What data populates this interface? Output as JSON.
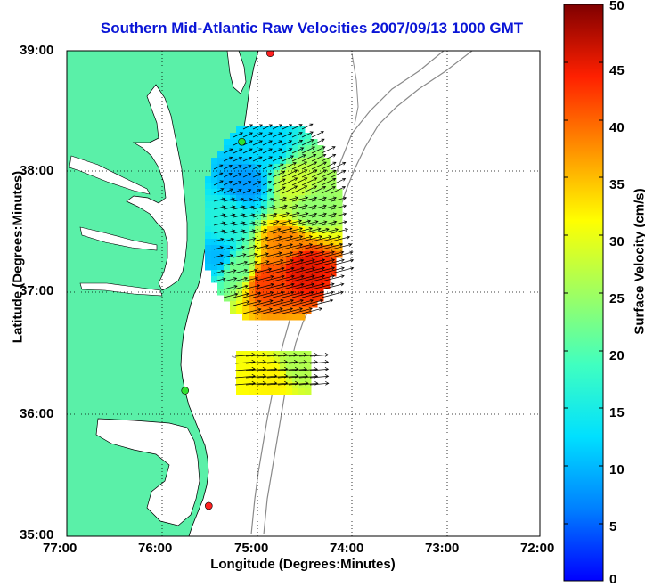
{
  "title": "Southern Mid-Atlantic Raw Velocities 2007/09/13 1000 GMT",
  "xlabel": "Longitude (Degrees:Minutes)",
  "ylabel": "Latitude (Degrees:Minutes)",
  "colorbar_label": "Surface Velocity (cm/s)",
  "x_ticks": [
    "77:00",
    "76:00",
    "75:00",
    "74:00",
    "73:00",
    "72:00"
  ],
  "y_ticks": [
    "39:00",
    "38:00",
    "37:00",
    "36:00",
    "35:00"
  ],
  "colorbar_ticks": [
    "0",
    "5",
    "10",
    "15",
    "20",
    "25",
    "30",
    "35",
    "40",
    "45",
    "50"
  ],
  "colors": {
    "title": "#0a15d6",
    "land": "#5af0a8",
    "ocean": "#ffffff",
    "bathymetry": "#8a8a8a",
    "grid": "#000000"
  },
  "map": {
    "lon_range": [
      -77,
      -72
    ],
    "lat_range": [
      35,
      39
    ],
    "grid": "dotted",
    "sites": [
      {
        "lon": -74.85,
        "lat": 38.98,
        "color": "#ff2020"
      },
      {
        "lon": -75.15,
        "lat": 38.25,
        "color": "#30e030"
      },
      {
        "lon": -75.75,
        "lat": 36.2,
        "color": "#30e030"
      },
      {
        "lon": -75.5,
        "lat": 35.25,
        "color": "#ff2020"
      }
    ]
  },
  "colorbar": {
    "min": 0,
    "max": 50,
    "colormap": "jet"
  },
  "chart_data": {
    "type": "heatmap",
    "title": "Southern Mid-Atlantic Raw Velocities 2007/09/13 1000 GMT",
    "xlabel": "Longitude (Degrees:Minutes)",
    "ylabel": "Latitude (Degrees:Minutes)",
    "xlim": [
      -77,
      -72
    ],
    "ylim": [
      35,
      39
    ],
    "units": "cm/s",
    "clim": [
      0,
      50
    ],
    "regions": [
      {
        "lon": -74.9,
        "lat": 38.2,
        "speed": 12
      },
      {
        "lon": -75.1,
        "lat": 37.9,
        "speed": 8
      },
      {
        "lon": -75.3,
        "lat": 37.6,
        "speed": 16
      },
      {
        "lon": -74.6,
        "lat": 37.9,
        "speed": 28
      },
      {
        "lon": -74.4,
        "lat": 37.7,
        "speed": 24
      },
      {
        "lon": -74.7,
        "lat": 37.4,
        "speed": 38
      },
      {
        "lon": -74.5,
        "lat": 37.2,
        "speed": 45
      },
      {
        "lon": -74.9,
        "lat": 37.1,
        "speed": 42
      },
      {
        "lon": -75.2,
        "lat": 37.2,
        "speed": 22
      },
      {
        "lon": -75.4,
        "lat": 37.3,
        "speed": 10
      },
      {
        "lon": -74.8,
        "lat": 36.3,
        "speed": 32
      },
      {
        "lon": -74.6,
        "lat": 36.4,
        "speed": 26
      }
    ]
  }
}
